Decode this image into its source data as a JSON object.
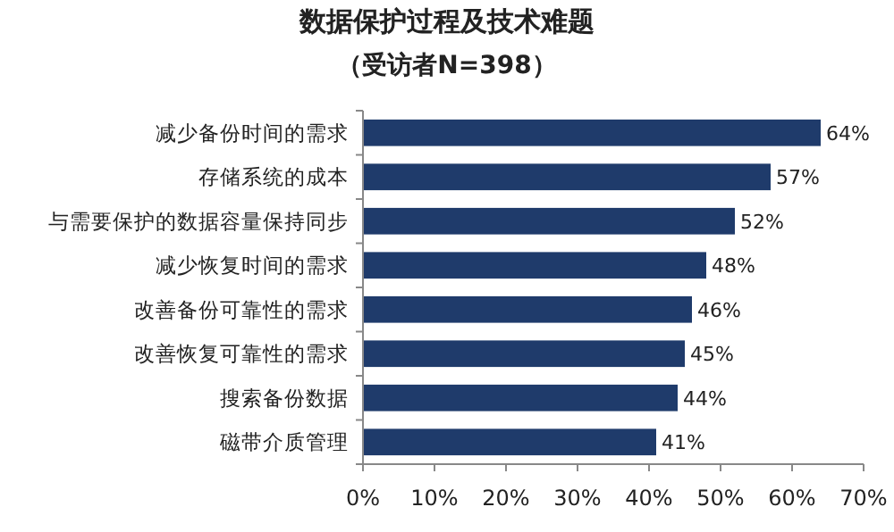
{
  "chart_data": {
    "type": "bar",
    "orientation": "horizontal",
    "title": "数据保护过程及技术难题",
    "subtitle": "（受访者N=398）",
    "categories": [
      "减少备份时间的需求",
      "存储系统的成本",
      "与需要保护的数据容量保持同步",
      "减少恢复时间的需求",
      "改善备份可靠性的需求",
      "改善恢复可靠性的需求",
      "搜索备份数据",
      "磁带介质管理"
    ],
    "values": [
      64,
      57,
      52,
      48,
      46,
      45,
      44,
      41
    ],
    "value_labels": [
      "64%",
      "57%",
      "52%",
      "48%",
      "46%",
      "45%",
      "44%",
      "41%"
    ],
    "color": "#1f3b6b",
    "xlim": [
      0,
      70
    ],
    "xticks": [
      {
        "value": 0,
        "label": "0%"
      },
      {
        "value": 10,
        "label": "10%"
      },
      {
        "value": 20,
        "label": "20%"
      },
      {
        "value": 30,
        "label": "30%"
      },
      {
        "value": 40,
        "label": "40%"
      },
      {
        "value": 50,
        "label": "50%"
      },
      {
        "value": 60,
        "label": "60%"
      },
      {
        "value": 70,
        "label": "70%"
      }
    ]
  }
}
